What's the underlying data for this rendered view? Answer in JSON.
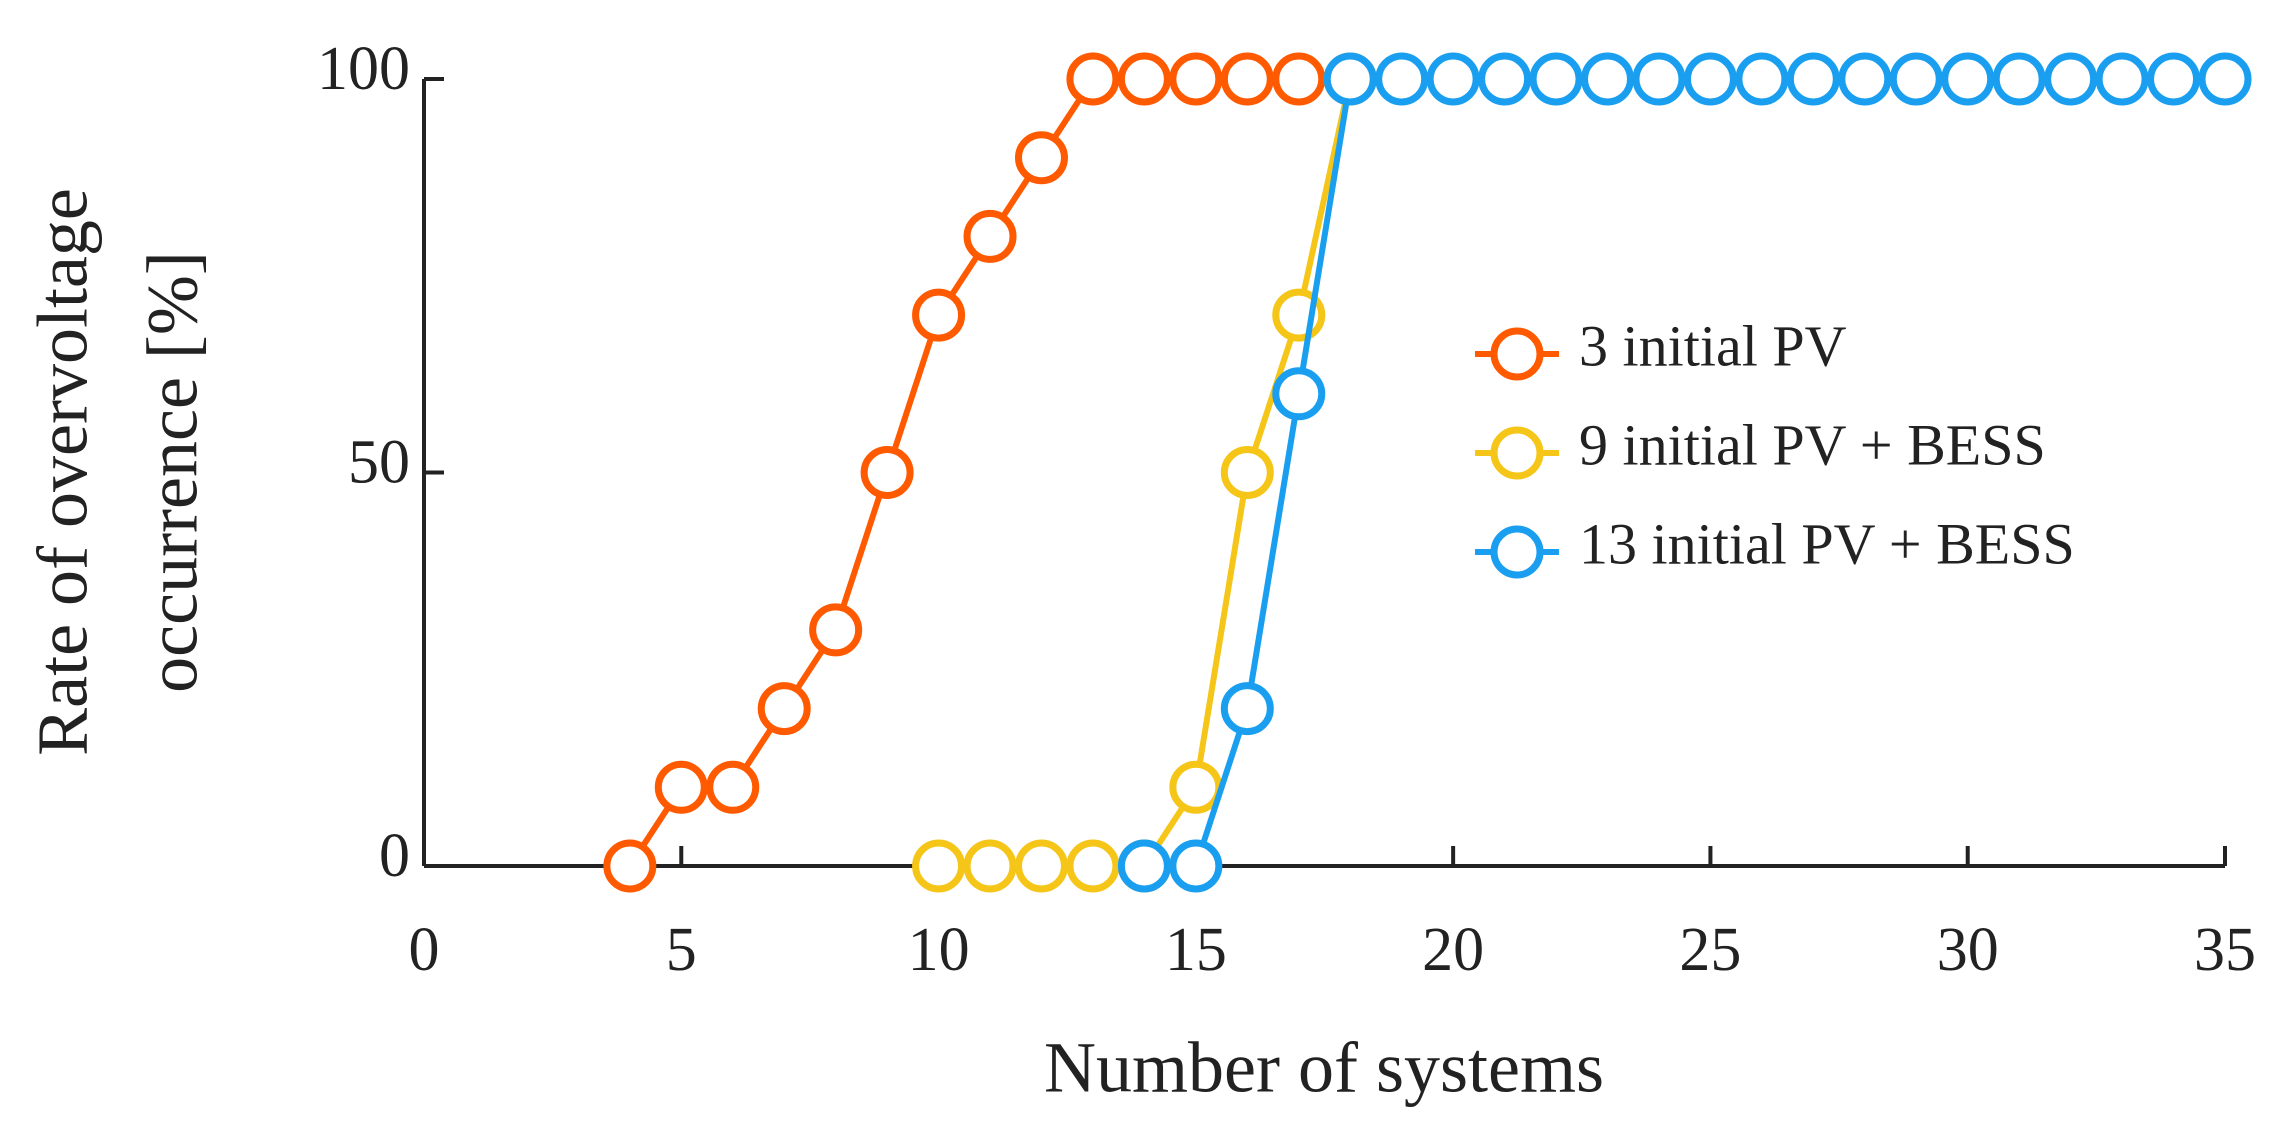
{
  "chart_data": {
    "type": "line",
    "xlabel": "Number of systems",
    "ylabel": [
      "Rate of overvoltage",
      "occurrence [%]"
    ],
    "xlim": [
      0,
      35
    ],
    "ylim": [
      0,
      100
    ],
    "xticks": [
      0,
      5,
      10,
      15,
      20,
      25,
      30,
      35
    ],
    "yticks": [
      0,
      50,
      100
    ],
    "legend": "right",
    "series": [
      {
        "name": "3 initial PV",
        "color": "#ff5a00",
        "x": [
          4,
          5,
          6,
          7,
          8,
          9,
          10,
          11,
          12,
          13,
          14,
          15,
          16,
          17
        ],
        "values": [
          0,
          10,
          10,
          20,
          30,
          50,
          70,
          80,
          90,
          100,
          100,
          100,
          100,
          100
        ]
      },
      {
        "name": "9 initial PV + BESS",
        "color": "#f5c518",
        "x": [
          10,
          11,
          12,
          13,
          14,
          15,
          16,
          17,
          18
        ],
        "values": [
          0,
          0,
          0,
          0,
          0,
          10,
          50,
          70,
          100
        ]
      },
      {
        "name": "13 initial PV + BESS",
        "color": "#1a9ff0",
        "x": [
          14,
          15,
          16,
          17,
          18,
          19,
          20,
          21,
          22,
          23,
          24,
          25,
          26,
          27,
          28,
          29,
          30,
          31,
          32,
          33,
          34,
          35
        ],
        "values": [
          0,
          0,
          20,
          60,
          100,
          100,
          100,
          100,
          100,
          100,
          100,
          100,
          100,
          100,
          100,
          100,
          100,
          100,
          100,
          100,
          100,
          100
        ]
      }
    ]
  }
}
